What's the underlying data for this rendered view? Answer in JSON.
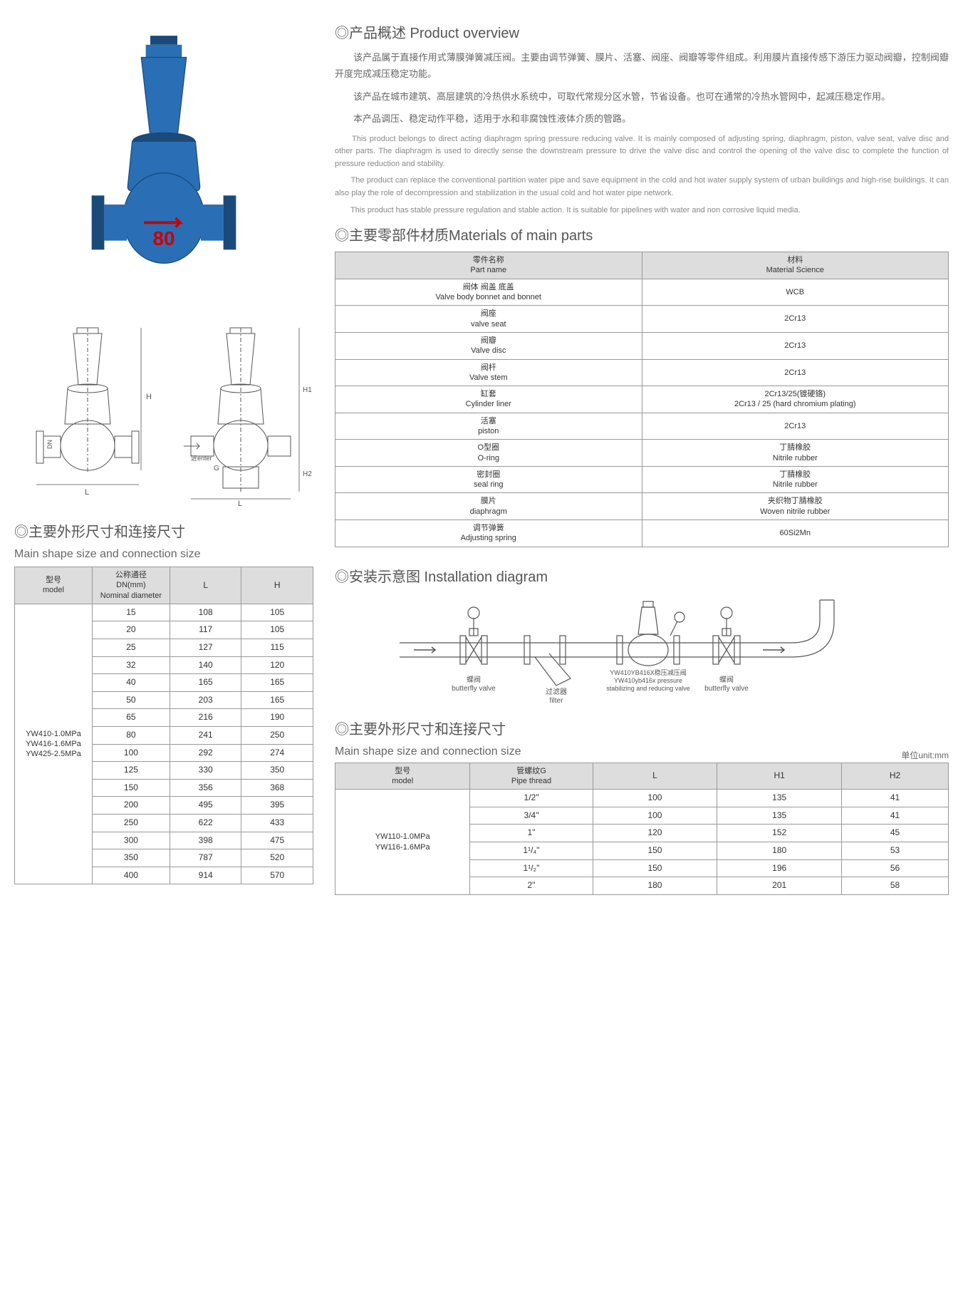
{
  "overview": {
    "title": "◎产品概述 Product overview",
    "cn_p1": "　　该产品属于直接作用式薄膜弹簧减压阀。主要由调节弹簧、膜片、活塞、阀座、阀瓣等零件组成。利用膜片直接传感下游压力驱动阀瓣，控制阀瓣开度完成减压稳定功能。",
    "cn_p2": "　　该产品在城市建筑、高层建筑的冷热供水系统中，可取代常规分区水管，节省设备。也可在通常的冷热水管网中，起减压稳定作用。",
    "cn_p3": "　　本产品调压、稳定动作平稳，适用于水和非腐蚀性液体介质的管路。",
    "en_p1": "　　This product belongs to direct acting diaphragm spring pressure reducing valve. It is mainly composed of adjusting spring, diaphragm, piston, valve seat, valve disc and other parts. The diaphragm is used to directly sense the downstream pressure to drive the valve disc and control the opening of the valve disc to complete the function of pressure reduction and stability.",
    "en_p2": "　　The product can replace the conventional partition water pipe and save equipment in the cold and hot water supply system of urban buildings and high-rise buildings. It can also play the role of decompression and stabilization in the usual cold and hot water pipe network.",
    "en_p3": "　　This product has stable pressure regulation and stable action. It is suitable for pipelines with water and non corrosive liquid media."
  },
  "materials": {
    "title": "◎主要零部件材质Materials of main parts",
    "header_part": "零件名称\nPart name",
    "header_material": "材料\nMaterial Science",
    "rows": [
      {
        "part": "阀体 阀盖 底盖\nValve body bonnet and bonnet",
        "material": "WCB"
      },
      {
        "part": "阀座\nvalve seat",
        "material": "2Cr13"
      },
      {
        "part": "阀瓣\nValve disc",
        "material": "2Cr13"
      },
      {
        "part": "阀杆\nValve stem",
        "material": "2Cr13"
      },
      {
        "part": "缸套\nCylinder liner",
        "material": "2Cr13/25(镀硬铬)\n2Cr13 / 25 (hard chromium plating)"
      },
      {
        "part": "活塞\npiston",
        "material": "2Cr13"
      },
      {
        "part": "O型圈\nO-ring",
        "material": "丁腈橡胶\nNitrile rubber"
      },
      {
        "part": "密封圈\nseal ring",
        "material": "丁腈橡胶\nNitrile rubber"
      },
      {
        "part": "膜片\ndiaphragm",
        "material": "夹织物丁腈橡胶\nWoven nitrile rubber"
      },
      {
        "part": "调节弹簧\nAdjusting spring",
        "material": "60Si2Mn"
      }
    ]
  },
  "size_table1": {
    "title": "◎主要外形尺寸和连接尺寸",
    "subtitle": "Main shape size and connection size",
    "headers": {
      "model": "型号\nmodel",
      "dn": "公称通径\nDN(mm)\nNominal diameter",
      "l": "L",
      "h": "H"
    },
    "model_text": "YW410-1.0MPa\nYW416-1.6MPa\nYW425-2.5MPa",
    "rows": [
      {
        "dn": "15",
        "l": "108",
        "h": "105"
      },
      {
        "dn": "20",
        "l": "117",
        "h": "105"
      },
      {
        "dn": "25",
        "l": "127",
        "h": "115"
      },
      {
        "dn": "32",
        "l": "140",
        "h": "120"
      },
      {
        "dn": "40",
        "l": "165",
        "h": "165"
      },
      {
        "dn": "50",
        "l": "203",
        "h": "165"
      },
      {
        "dn": "65",
        "l": "216",
        "h": "190"
      },
      {
        "dn": "80",
        "l": "241",
        "h": "250"
      },
      {
        "dn": "100",
        "l": "292",
        "h": "274"
      },
      {
        "dn": "125",
        "l": "330",
        "h": "350"
      },
      {
        "dn": "150",
        "l": "356",
        "h": "368"
      },
      {
        "dn": "200",
        "l": "495",
        "h": "395"
      },
      {
        "dn": "250",
        "l": "622",
        "h": "433"
      },
      {
        "dn": "300",
        "l": "398",
        "h": "475"
      },
      {
        "dn": "350",
        "l": "787",
        "h": "520"
      },
      {
        "dn": "400",
        "l": "914",
        "h": "570"
      }
    ]
  },
  "install": {
    "title": "◎安装示意图 Installation diagram",
    "label_bfv": "蝶阀\nbutterfly valve",
    "label_filter": "过滤器\nfilter",
    "label_prv": "YW410YB416X稳压减压阀\nYW410yb416x pressure\nstabilizing and reducing valve",
    "label_bfv2": "蝶阀\nbutterfly valve"
  },
  "size_table2": {
    "title": "◎主要外形尺寸和连接尺寸",
    "subtitle": "Main shape size and connection size",
    "unit": "单位unit:mm",
    "headers": {
      "model": "型号\nmodel",
      "thread": "管螺纹G\nPipe thread",
      "l": "L",
      "h1": "H1",
      "h2": "H2"
    },
    "model_text": "YW110-1.0MPa\nYW116-1.6MPa",
    "rows": [
      {
        "thread": "1/2\"",
        "l": "100",
        "h1": "135",
        "h2": "41"
      },
      {
        "thread": "3/4\"",
        "l": "100",
        "h1": "135",
        "h2": "41"
      },
      {
        "thread": "1\"",
        "l": "120",
        "h1": "152",
        "h2": "45"
      },
      {
        "thread": "1¹/₄\"",
        "l": "150",
        "h1": "180",
        "h2": "53"
      },
      {
        "thread": "1¹/₂\"",
        "l": "150",
        "h1": "196",
        "h2": "56"
      },
      {
        "thread": "2\"",
        "l": "180",
        "h1": "201",
        "h2": "58"
      }
    ]
  },
  "drawing": {
    "enter_label": "进enter",
    "dn_label": "DN",
    "l_label": "L",
    "h_label": "H",
    "h1_label": "H1",
    "h2_label": "H2",
    "g_label": "G"
  },
  "colors": {
    "valve_blue": "#2a6fb5",
    "valve_blue_dark": "#1a4a7a",
    "line_gray": "#888",
    "text_gray": "#666"
  }
}
